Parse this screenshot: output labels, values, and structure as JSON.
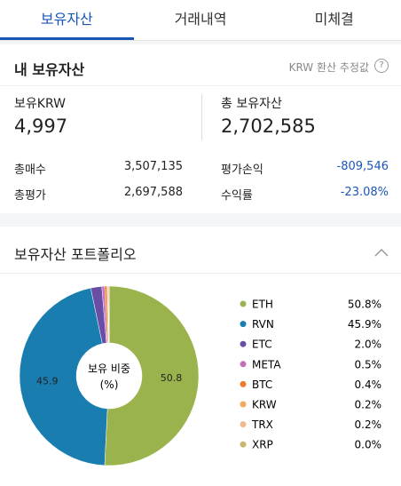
{
  "tabs": [
    "보유자산",
    "거래내역",
    "미체결"
  ],
  "summary": {
    "title": "내 보유자산",
    "note": "KRW 환산 추정값",
    "krw_label": "보유KRW",
    "krw_value": "4,997",
    "total_label": "총 보유자산",
    "total_value": "2,702,585",
    "rows": [
      [
        "총매수",
        "3,507,135",
        "평가손익",
        "-809,546"
      ],
      [
        "총평가",
        "2,697,588",
        "수익률",
        "-23.08%"
      ]
    ]
  },
  "chart_data": {
    "type": "donut",
    "title": "보유자산 포트폴리오",
    "center_label": [
      "보유 비중",
      "(%)"
    ],
    "categories": [
      "ETH",
      "RVN",
      "ETC",
      "META",
      "BTC",
      "KRW",
      "TRX",
      "XRP"
    ],
    "values": [
      50.8,
      45.9,
      2.0,
      0.5,
      0.4,
      0.2,
      0.2,
      0.0
    ],
    "value_labels": [
      "50.8%",
      "45.9%",
      "2.0%",
      "0.5%",
      "0.4%",
      "0.2%",
      "0.2%",
      "0.0%"
    ],
    "colors": [
      "#9bb34c",
      "#1a7db0",
      "#6a4ea6",
      "#c46fb8",
      "#ee7a2a",
      "#f3a85e",
      "#efbb8e",
      "#c9b56c"
    ]
  }
}
